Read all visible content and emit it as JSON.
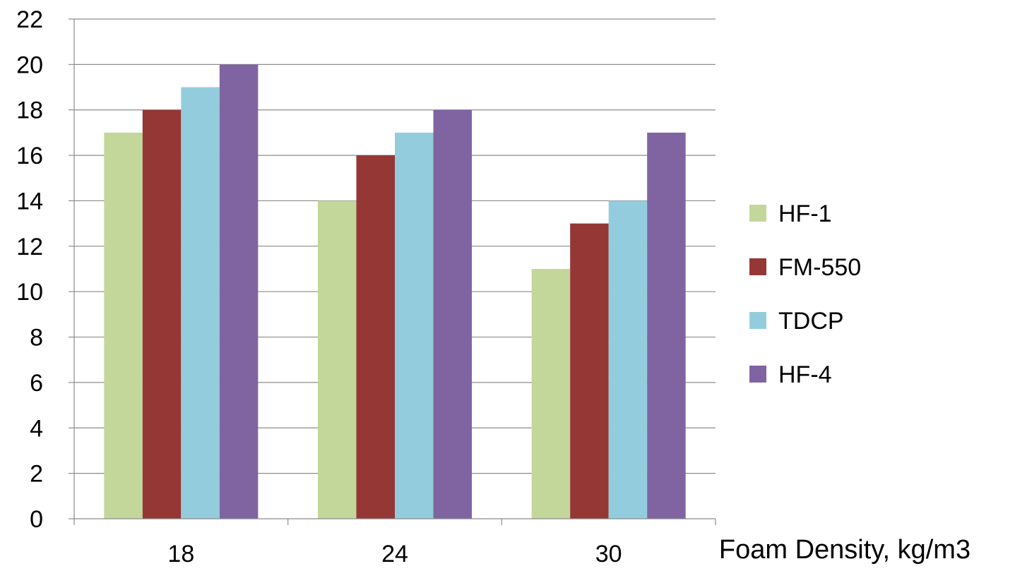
{
  "chart_data": {
    "type": "bar",
    "title": "",
    "xlabel": "Foam Density, kg/m3",
    "ylabel": "",
    "categories": [
      "18",
      "24",
      "30"
    ],
    "series": [
      {
        "name": "HF-1",
        "color": "#C4D79B",
        "values": [
          17,
          14,
          11
        ]
      },
      {
        "name": "FM-550",
        "color": "#953735",
        "values": [
          18,
          16,
          13
        ]
      },
      {
        "name": "TDCP",
        "color": "#93CDDD",
        "values": [
          19,
          17,
          14
        ]
      },
      {
        "name": "HF-4",
        "color": "#8064A2",
        "values": [
          20,
          18,
          17
        ]
      }
    ],
    "ylim": [
      0,
      22
    ],
    "yticks": [
      "0",
      "2",
      "4",
      "6",
      "8",
      "10",
      "12",
      "14",
      "16",
      "18",
      "20",
      "22"
    ],
    "grid": true,
    "legend": "right"
  }
}
